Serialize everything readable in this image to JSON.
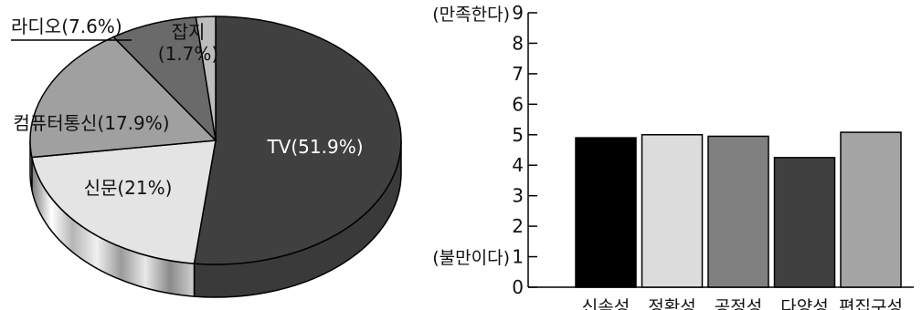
{
  "chart_data": [
    {
      "type": "pie",
      "style": "3d",
      "slices": [
        {
          "label": "TV(51.9%)",
          "value": 51.9,
          "color": "#404040",
          "text_color": "#ffffff"
        },
        {
          "label": "신문(21%)",
          "value": 21.0,
          "color": "#e4e4e4",
          "text_color": "#111111"
        },
        {
          "label": "컴퓨터통신(17.9%)",
          "value": 17.9,
          "color": "#a0a0a0",
          "text_color": "#111111"
        },
        {
          "label": "라디오(7.6%)",
          "value": 7.6,
          "color": "#6a6a6a",
          "text_color": "#111111"
        },
        {
          "label_lines": [
            "잡지",
            "(1.7%)"
          ],
          "value": 1.7,
          "color": "#bdbdbd",
          "text_color": "#111111"
        }
      ]
    },
    {
      "type": "bar",
      "categories": [
        "신속성",
        "정확성",
        "공정성",
        "다양성",
        "편집구성"
      ],
      "values": [
        4.9,
        5.0,
        4.95,
        4.25,
        5.08
      ],
      "colors": [
        "#000000",
        "#dcdcdc",
        "#808080",
        "#404040",
        "#a4a4a4"
      ],
      "ylim": [
        0,
        9
      ],
      "yticks": [
        0,
        1,
        2,
        3,
        4,
        5,
        6,
        7,
        8,
        9
      ],
      "y_top_label": "(만족한다)",
      "y_bottom_label": "(불만이다)",
      "grid": false
    }
  ]
}
